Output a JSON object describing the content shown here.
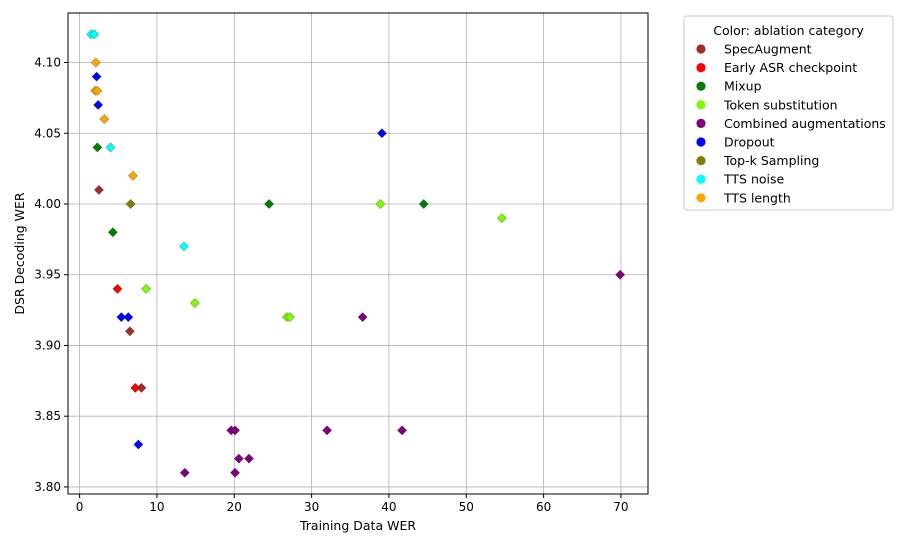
{
  "chart_data": {
    "type": "scatter",
    "xlabel": "Training Data WER",
    "ylabel": "DSR Decoding WER",
    "xlim": [
      -1.5,
      73.5
    ],
    "ylim": [
      3.795,
      4.135
    ],
    "xticks": [
      0,
      10,
      20,
      30,
      40,
      50,
      60,
      70
    ],
    "yticks": [
      3.8,
      3.85,
      3.9,
      3.95,
      4.0,
      4.05,
      4.1
    ],
    "grid": true,
    "marker": "diamond",
    "legend": {
      "title": "Color: ablation category",
      "placement": "outside-right-top"
    },
    "series": [
      {
        "name": "SpecAugment",
        "color": "#a52a2a",
        "points": [
          [
            2.5,
            4.01
          ],
          [
            6.5,
            3.91
          ],
          [
            8.0,
            3.87
          ]
        ]
      },
      {
        "name": "Early ASR checkpoint",
        "color": "#ff0000",
        "points": [
          [
            4.9,
            3.94
          ],
          [
            7.2,
            3.87
          ]
        ]
      },
      {
        "name": "Mixup",
        "color": "#008000",
        "points": [
          [
            2.3,
            4.04
          ],
          [
            4.3,
            3.98
          ],
          [
            24.5,
            4.0
          ],
          [
            44.5,
            4.0
          ]
        ]
      },
      {
        "name": "Token substitution",
        "color": "#7cfc00",
        "points": [
          [
            8.6,
            3.94
          ],
          [
            14.9,
            3.93
          ],
          [
            26.8,
            3.92
          ],
          [
            27.2,
            3.92
          ],
          [
            38.9,
            4.0
          ],
          [
            54.6,
            3.99
          ]
        ]
      },
      {
        "name": "Combined augmentations",
        "color": "#800080",
        "points": [
          [
            13.6,
            3.81
          ],
          [
            19.6,
            3.84
          ],
          [
            20.1,
            3.84
          ],
          [
            20.1,
            3.81
          ],
          [
            20.6,
            3.82
          ],
          [
            21.9,
            3.82
          ],
          [
            32.0,
            3.84
          ],
          [
            36.6,
            3.92
          ],
          [
            41.7,
            3.84
          ],
          [
            69.9,
            3.95
          ]
        ]
      },
      {
        "name": "Dropout",
        "color": "#0000ff",
        "points": [
          [
            2.2,
            4.09
          ],
          [
            2.4,
            4.07
          ],
          [
            5.4,
            3.92
          ],
          [
            6.3,
            3.92
          ],
          [
            7.6,
            3.83
          ],
          [
            39.1,
            4.05
          ]
        ]
      },
      {
        "name": "Top-k Sampling",
        "color": "#808000",
        "points": [
          [
            6.6,
            4.0
          ]
        ]
      },
      {
        "name": "TTS noise",
        "color": "#00ffff",
        "points": [
          [
            1.5,
            4.12
          ],
          [
            1.9,
            4.12
          ],
          [
            4.0,
            4.04
          ],
          [
            13.5,
            3.97
          ]
        ]
      },
      {
        "name": "TTS length",
        "color": "#ffa500",
        "points": [
          [
            2.1,
            4.1
          ],
          [
            2.0,
            4.08
          ],
          [
            2.3,
            4.08
          ],
          [
            3.2,
            4.06
          ],
          [
            6.9,
            4.02
          ]
        ]
      }
    ]
  }
}
